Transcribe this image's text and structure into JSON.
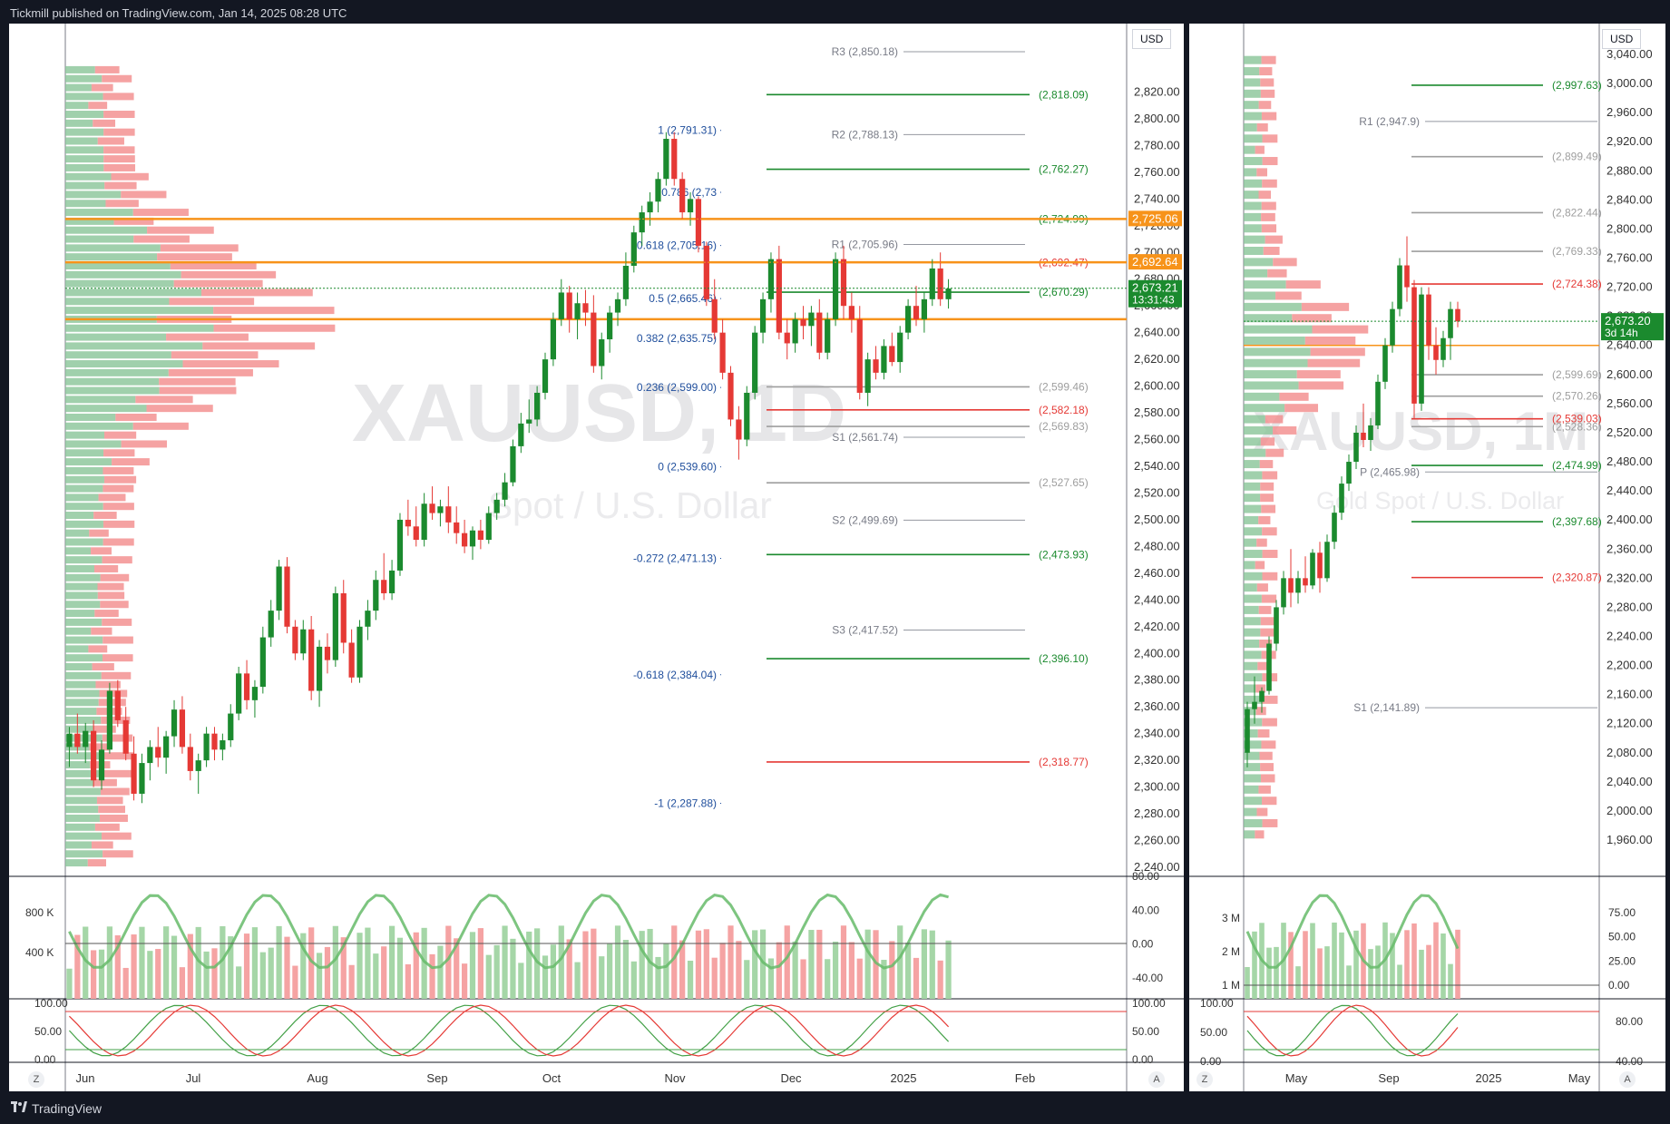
{
  "header": {
    "publisher_line": "Tickmill published on TradingView.com, Jan 14, 2025 08:28 UTC"
  },
  "footer": {
    "brand": "TradingView"
  },
  "colors": {
    "up": "#1b8a2e",
    "down": "#e53935",
    "orange": "#f7931a",
    "green_level": "#1b8a2e",
    "red_level": "#e53935",
    "fib_blue": "#1f4e9c",
    "pivot_grey": "#787b86",
    "magenta": "#e040fb"
  },
  "chart_data": [
    {
      "type": "candlestick",
      "symbol_watermark": "XAUUSD, 1D",
      "watermark_sub": "Spot / U.S. Dollar",
      "currency": "USD",
      "ylim": [
        2240,
        2840
      ],
      "y_ticks": [
        "2,820.00",
        "2,800.00",
        "2,780.00",
        "2,760.00",
        "2,740.00",
        "2,720.00",
        "2,700.00",
        "2,680.00",
        "2,660.00",
        "2,640.00",
        "2,620.00",
        "2,600.00",
        "2,580.00",
        "2,560.00",
        "2,540.00",
        "2,520.00",
        "2,500.00",
        "2,480.00",
        "2,460.00",
        "2,440.00",
        "2,420.00",
        "2,400.00",
        "2,380.00",
        "2,360.00",
        "2,340.00",
        "2,320.00",
        "2,300.00",
        "2,280.00",
        "2,260.00",
        "2,240.00"
      ],
      "x_ticks": [
        "Jun",
        "Jul",
        "Aug",
        "Sep",
        "Oct",
        "Nov",
        "Dec",
        "2025",
        "Feb"
      ],
      "price_tags": [
        {
          "label": "2,725.06",
          "value": 2725.06,
          "color": "#f7931a"
        },
        {
          "label": "2,692.64",
          "value": 2692.64,
          "color": "#f7931a"
        },
        {
          "label": "2,673.21",
          "value": 2673.21,
          "color": "#1b8a2e",
          "sub": "13:31:43"
        }
      ],
      "fib_levels": [
        {
          "label": "1 (2,791.31)",
          "value": 2791.31
        },
        {
          "label": "0.786 (2,73",
          "value": 2745.0
        },
        {
          "label": "0.618 (2,705.16)",
          "value": 2705.16
        },
        {
          "label": "0.5 (2,665.46)",
          "value": 2665.46
        },
        {
          "label": "0.382 (2,635.75)",
          "value": 2635.75
        },
        {
          "label": "0.236 (2,599.00)",
          "value": 2599.0
        },
        {
          "label": "0 (2,539.60)",
          "value": 2539.6
        },
        {
          "label": "-0.272 (2,471.13)",
          "value": 2471.13
        },
        {
          "label": "-0.618 (2,384.04)",
          "value": 2384.04
        },
        {
          "label": "-1 (2,287.88)",
          "value": 2287.88
        }
      ],
      "pivots": [
        {
          "label": "R3 (2,850.18)",
          "value": 2850.18
        },
        {
          "label": "R2 (2,788.13)",
          "value": 2788.13
        },
        {
          "label": "R1 (2,705.96)",
          "value": 2705.96
        },
        {
          "label": "S1 (2,561.74)",
          "value": 2561.74
        },
        {
          "label": "S2 (2,499.69)",
          "value": 2499.69
        },
        {
          "label": "S3 (2,417.52)",
          "value": 2417.52
        }
      ],
      "levels": [
        {
          "label": "(2,818.09)",
          "value": 2818.09,
          "color": "#1b8a2e"
        },
        {
          "label": "(2,762.27)",
          "value": 2762.27,
          "color": "#1b8a2e"
        },
        {
          "label": "(2,724.99)",
          "value": 2724.99,
          "color": "#1b8a2e"
        },
        {
          "label": "(2,692.47)",
          "value": 2692.47,
          "color": "#e53935"
        },
        {
          "label": "(2,670.29)",
          "value": 2670.29,
          "color": "#1b8a2e"
        },
        {
          "label": "(2,599.46)",
          "value": 2599.46,
          "color": "#9e9e9e"
        },
        {
          "label": "(2,582.18)",
          "value": 2582.18,
          "color": "#e53935"
        },
        {
          "label": "(2,569.83)",
          "value": 2569.83,
          "color": "#9e9e9e"
        },
        {
          "label": "(2,527.65)",
          "value": 2527.65,
          "color": "#9e9e9e"
        },
        {
          "label": "(2,473.93)",
          "value": 2473.93,
          "color": "#1b8a2e"
        },
        {
          "label": "(2,396.10)",
          "value": 2396.1,
          "color": "#1b8a2e"
        },
        {
          "label": "(2,318.77)",
          "value": 2318.77,
          "color": "#e53935"
        }
      ],
      "candles": [
        [
          2330,
          2345,
          2315,
          2340
        ],
        [
          2340,
          2355,
          2325,
          2330
        ],
        [
          2330,
          2348,
          2318,
          2342
        ],
        [
          2342,
          2350,
          2300,
          2305
        ],
        [
          2305,
          2335,
          2298,
          2328
        ],
        [
          2328,
          2378,
          2325,
          2372
        ],
        [
          2372,
          2380,
          2345,
          2350
        ],
        [
          2350,
          2360,
          2320,
          2325
        ],
        [
          2325,
          2338,
          2290,
          2295
        ],
        [
          2295,
          2325,
          2288,
          2318
        ],
        [
          2318,
          2335,
          2305,
          2330
        ],
        [
          2330,
          2345,
          2315,
          2322
        ],
        [
          2322,
          2342,
          2310,
          2338
        ],
        [
          2338,
          2365,
          2330,
          2358
        ],
        [
          2358,
          2368,
          2325,
          2330
        ],
        [
          2330,
          2340,
          2305,
          2312
        ],
        [
          2312,
          2325,
          2295,
          2320
        ],
        [
          2320,
          2345,
          2315,
          2340
        ],
        [
          2340,
          2345,
          2320,
          2328
        ],
        [
          2328,
          2340,
          2320,
          2335
        ],
        [
          2335,
          2362,
          2330,
          2355
        ],
        [
          2355,
          2390,
          2350,
          2385
        ],
        [
          2385,
          2395,
          2358,
          2365
        ],
        [
          2365,
          2380,
          2352,
          2375
        ],
        [
          2375,
          2420,
          2370,
          2412
        ],
        [
          2412,
          2440,
          2405,
          2432
        ],
        [
          2432,
          2470,
          2425,
          2465
        ],
        [
          2465,
          2472,
          2415,
          2420
        ],
        [
          2420,
          2425,
          2395,
          2400
        ],
        [
          2400,
          2425,
          2395,
          2418
        ],
        [
          2418,
          2428,
          2365,
          2372
        ],
        [
          2372,
          2410,
          2360,
          2405
        ],
        [
          2405,
          2415,
          2385,
          2395
        ],
        [
          2395,
          2450,
          2390,
          2445
        ],
        [
          2445,
          2455,
          2400,
          2408
        ],
        [
          2408,
          2418,
          2378,
          2382
        ],
        [
          2382,
          2425,
          2378,
          2420
        ],
        [
          2420,
          2440,
          2410,
          2432
        ],
        [
          2432,
          2462,
          2425,
          2455
        ],
        [
          2455,
          2475,
          2440,
          2445
        ],
        [
          2445,
          2470,
          2440,
          2462
        ],
        [
          2462,
          2505,
          2458,
          2500
        ],
        [
          2500,
          2515,
          2488,
          2495
        ],
        [
          2495,
          2510,
          2480,
          2485
        ],
        [
          2485,
          2520,
          2480,
          2512
        ],
        [
          2512,
          2525,
          2500,
          2505
        ],
        [
          2505,
          2515,
          2495,
          2510
        ],
        [
          2510,
          2525,
          2490,
          2498
        ],
        [
          2498,
          2510,
          2482,
          2490
        ],
        [
          2490,
          2500,
          2475,
          2480
        ],
        [
          2480,
          2495,
          2470,
          2492
        ],
        [
          2492,
          2500,
          2478,
          2485
        ],
        [
          2485,
          2510,
          2482,
          2505
        ],
        [
          2505,
          2520,
          2500,
          2515
        ],
        [
          2515,
          2535,
          2510,
          2528
        ],
        [
          2528,
          2560,
          2525,
          2555
        ],
        [
          2555,
          2580,
          2550,
          2572
        ],
        [
          2572,
          2590,
          2565,
          2575
        ],
        [
          2575,
          2600,
          2570,
          2595
        ],
        [
          2595,
          2625,
          2590,
          2620
        ],
        [
          2620,
          2655,
          2615,
          2650
        ],
        [
          2650,
          2680,
          2645,
          2670
        ],
        [
          2670,
          2675,
          2640,
          2650
        ],
        [
          2650,
          2670,
          2635,
          2662
        ],
        [
          2662,
          2672,
          2645,
          2655
        ],
        [
          2655,
          2668,
          2610,
          2615
        ],
        [
          2615,
          2640,
          2605,
          2635
        ],
        [
          2635,
          2660,
          2625,
          2655
        ],
        [
          2655,
          2670,
          2645,
          2665
        ],
        [
          2665,
          2700,
          2660,
          2690
        ],
        [
          2690,
          2720,
          2685,
          2715
        ],
        [
          2715,
          2735,
          2705,
          2730
        ],
        [
          2730,
          2745,
          2720,
          2738
        ],
        [
          2738,
          2760,
          2730,
          2755
        ],
        [
          2755,
          2790,
          2750,
          2785
        ],
        [
          2785,
          2790,
          2750,
          2755
        ],
        [
          2755,
          2760,
          2725,
          2730
        ],
        [
          2730,
          2745,
          2720,
          2740
        ],
        [
          2740,
          2742,
          2700,
          2705
        ],
        [
          2705,
          2708,
          2660,
          2665
        ],
        [
          2665,
          2680,
          2635,
          2640
        ],
        [
          2640,
          2650,
          2605,
          2610
        ],
        [
          2610,
          2615,
          2570,
          2575
        ],
        [
          2575,
          2585,
          2545,
          2560
        ],
        [
          2560,
          2600,
          2555,
          2595
        ],
        [
          2595,
          2645,
          2590,
          2640
        ],
        [
          2640,
          2670,
          2632,
          2665
        ],
        [
          2665,
          2700,
          2655,
          2695
        ],
        [
          2695,
          2705,
          2635,
          2640
        ],
        [
          2640,
          2650,
          2620,
          2632
        ],
        [
          2632,
          2655,
          2625,
          2650
        ],
        [
          2650,
          2660,
          2635,
          2645
        ],
        [
          2645,
          2660,
          2630,
          2655
        ],
        [
          2655,
          2665,
          2620,
          2625
        ],
        [
          2625,
          2655,
          2620,
          2650
        ],
        [
          2650,
          2700,
          2645,
          2695
        ],
        [
          2695,
          2705,
          2650,
          2660
        ],
        [
          2660,
          2670,
          2640,
          2650
        ],
        [
          2650,
          2660,
          2590,
          2595
        ],
        [
          2595,
          2625,
          2585,
          2620
        ],
        [
          2620,
          2630,
          2605,
          2610
        ],
        [
          2610,
          2635,
          2605,
          2630
        ],
        [
          2630,
          2640,
          2615,
          2618
        ],
        [
          2618,
          2645,
          2610,
          2640
        ],
        [
          2640,
          2665,
          2635,
          2660
        ],
        [
          2660,
          2675,
          2645,
          2650
        ],
        [
          2650,
          2670,
          2640,
          2665
        ],
        [
          2665,
          2695,
          2660,
          2688
        ],
        [
          2688,
          2700,
          2660,
          2665
        ],
        [
          2665,
          2680,
          2658,
          2673
        ]
      ]
    },
    {
      "type": "candlestick",
      "symbol_watermark": "XAUUSD, 1M",
      "watermark_sub": "Gold Spot / U.S. Dollar",
      "currency": "USD",
      "ylim": [
        1960,
        3040
      ],
      "y_ticks": [
        "3,040.00",
        "3,000.00",
        "2,960.00",
        "2,920.00",
        "2,880.00",
        "2,840.00",
        "2,800.00",
        "2,760.00",
        "2,720.00",
        "2,680.00",
        "2,640.00",
        "2,600.00",
        "2,560.00",
        "2,520.00",
        "2,480.00",
        "2,440.00",
        "2,400.00",
        "2,360.00",
        "2,320.00",
        "2,280.00",
        "2,240.00",
        "2,200.00",
        "2,160.00",
        "2,120.00",
        "2,080.00",
        "2,040.00",
        "2,000.00",
        "1,960.00"
      ],
      "x_ticks": [
        "May",
        "Sep",
        "2025",
        "May"
      ],
      "price_tags": [
        {
          "label": "2,673.20",
          "value": 2673.2,
          "color": "#1b8a2e",
          "sub": "3d 14h"
        }
      ],
      "pivots": [
        {
          "label": "R1 (2,947.9)",
          "value": 2947.9
        },
        {
          "label": "P (2,465.98)",
          "value": 2465.98
        },
        {
          "label": "S1 (2,141.89)",
          "value": 2141.89
        }
      ],
      "levels": [
        {
          "label": "(2,997.63)",
          "value": 2997.63,
          "color": "#1b8a2e"
        },
        {
          "label": "(2,899.49)",
          "value": 2899.49,
          "color": "#9e9e9e"
        },
        {
          "label": "(2,822.44)",
          "value": 2822.44,
          "color": "#9e9e9e"
        },
        {
          "label": "(2,769.33)",
          "value": 2769.33,
          "color": "#9e9e9e"
        },
        {
          "label": "(2,724.38)",
          "value": 2724.38,
          "color": "#e53935"
        },
        {
          "label": "(2,599.69)",
          "value": 2599.69,
          "color": "#9e9e9e"
        },
        {
          "label": "(2,570.26)",
          "value": 2570.26,
          "color": "#9e9e9e"
        },
        {
          "label": "(2,539.03)",
          "value": 2539.03,
          "color": "#e53935"
        },
        {
          "label": "(2,528.36)",
          "value": 2528.36,
          "color": "#9e9e9e"
        },
        {
          "label": "(2,474.99)",
          "value": 2474.99,
          "color": "#1b8a2e"
        },
        {
          "label": "(2,397.68)",
          "value": 2397.68,
          "color": "#1b8a2e"
        },
        {
          "label": "(2,320.87)",
          "value": 2320.87,
          "color": "#e53935"
        }
      ],
      "candles": [
        [
          2080,
          2150,
          2060,
          2140
        ],
        [
          2140,
          2185,
          2120,
          2150
        ],
        [
          2150,
          2170,
          2135,
          2165
        ],
        [
          2165,
          2240,
          2160,
          2230
        ],
        [
          2230,
          2290,
          2220,
          2280
        ],
        [
          2280,
          2330,
          2270,
          2320
        ],
        [
          2320,
          2360,
          2280,
          2300
        ],
        [
          2300,
          2330,
          2285,
          2320
        ],
        [
          2320,
          2350,
          2300,
          2310
        ],
        [
          2310,
          2360,
          2305,
          2355
        ],
        [
          2355,
          2370,
          2300,
          2320
        ],
        [
          2320,
          2380,
          2315,
          2370
        ],
        [
          2370,
          2420,
          2360,
          2410
        ],
        [
          2410,
          2460,
          2400,
          2450
        ],
        [
          2450,
          2490,
          2440,
          2480
        ],
        [
          2480,
          2530,
          2470,
          2520
        ],
        [
          2520,
          2560,
          2500,
          2510
        ],
        [
          2510,
          2540,
          2495,
          2530
        ],
        [
          2530,
          2600,
          2525,
          2590
        ],
        [
          2590,
          2650,
          2580,
          2640
        ],
        [
          2640,
          2700,
          2630,
          2690
        ],
        [
          2690,
          2760,
          2680,
          2750
        ],
        [
          2750,
          2790,
          2700,
          2720
        ],
        [
          2720,
          2730,
          2540,
          2560
        ],
        [
          2560,
          2720,
          2550,
          2710
        ],
        [
          2710,
          2720,
          2620,
          2640
        ],
        [
          2640,
          2665,
          2600,
          2620
        ],
        [
          2620,
          2660,
          2610,
          2650
        ],
        [
          2650,
          2700,
          2620,
          2690
        ],
        [
          2690,
          2700,
          2665,
          2673
        ]
      ]
    }
  ],
  "indicators": {
    "p1_volume_axis": [
      "800 K",
      "400 K"
    ],
    "p1_osc_axis": [
      "80.00",
      "40.00",
      "0.00",
      "-40.00"
    ],
    "p1_stoch_axis": [
      "100.00",
      "50.00",
      "0.00"
    ],
    "p2_volume_axis": [
      "3 M",
      "2 M",
      "1 M"
    ],
    "p2_osc_axis": [
      "75.00",
      "50.00",
      "25.00",
      "0.00"
    ],
    "p2_stoch_axis_left": [
      "100.00",
      "50.00",
      "0.00"
    ],
    "p2_stoch_axis_right": [
      "80.00",
      "40.00"
    ],
    "scale_btn_left": "Z",
    "scale_btn_right": "A"
  }
}
